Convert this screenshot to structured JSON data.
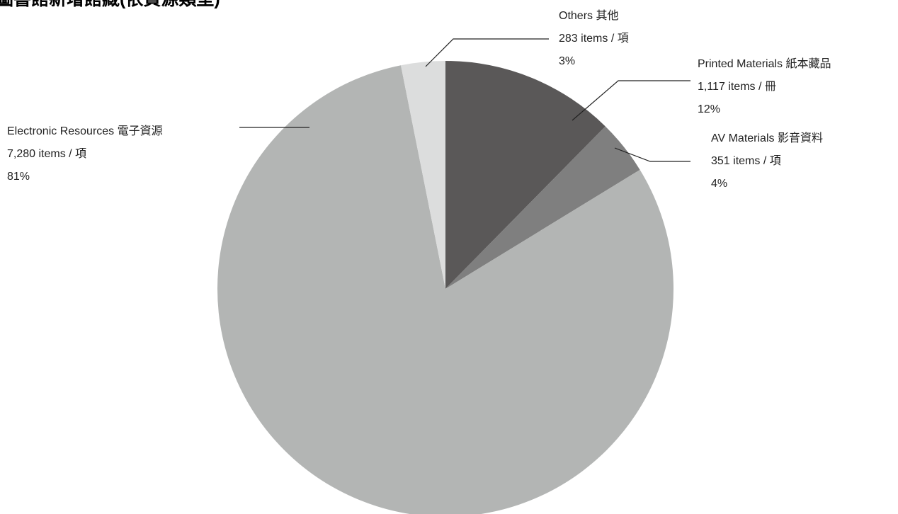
{
  "chart_data": {
    "type": "pie",
    "title": "圖書館新增館藏(依資源類型)",
    "start_angle_deg": 0,
    "direction": "clockwise",
    "slices": [
      {
        "name": "Printed Materials 紙本藏品",
        "count_text": "1,117 items / 冊",
        "value": 1117,
        "percent_label": "12%",
        "color": "#5a5858"
      },
      {
        "name": "AV Materials 影音資料",
        "count_text": "351 items / 項",
        "value": 351,
        "percent_label": "4%",
        "color": "#7f7f7f"
      },
      {
        "name": "Electronic Resources 電子資源",
        "count_text": "7,280 items / 項",
        "value": 7280,
        "percent_label": "81%",
        "color": "#b3b5b4"
      },
      {
        "name": "Others 其他",
        "count_text": "283 items / 項",
        "value": 283,
        "percent_label": "3%",
        "color": "#dcdddd"
      }
    ]
  }
}
